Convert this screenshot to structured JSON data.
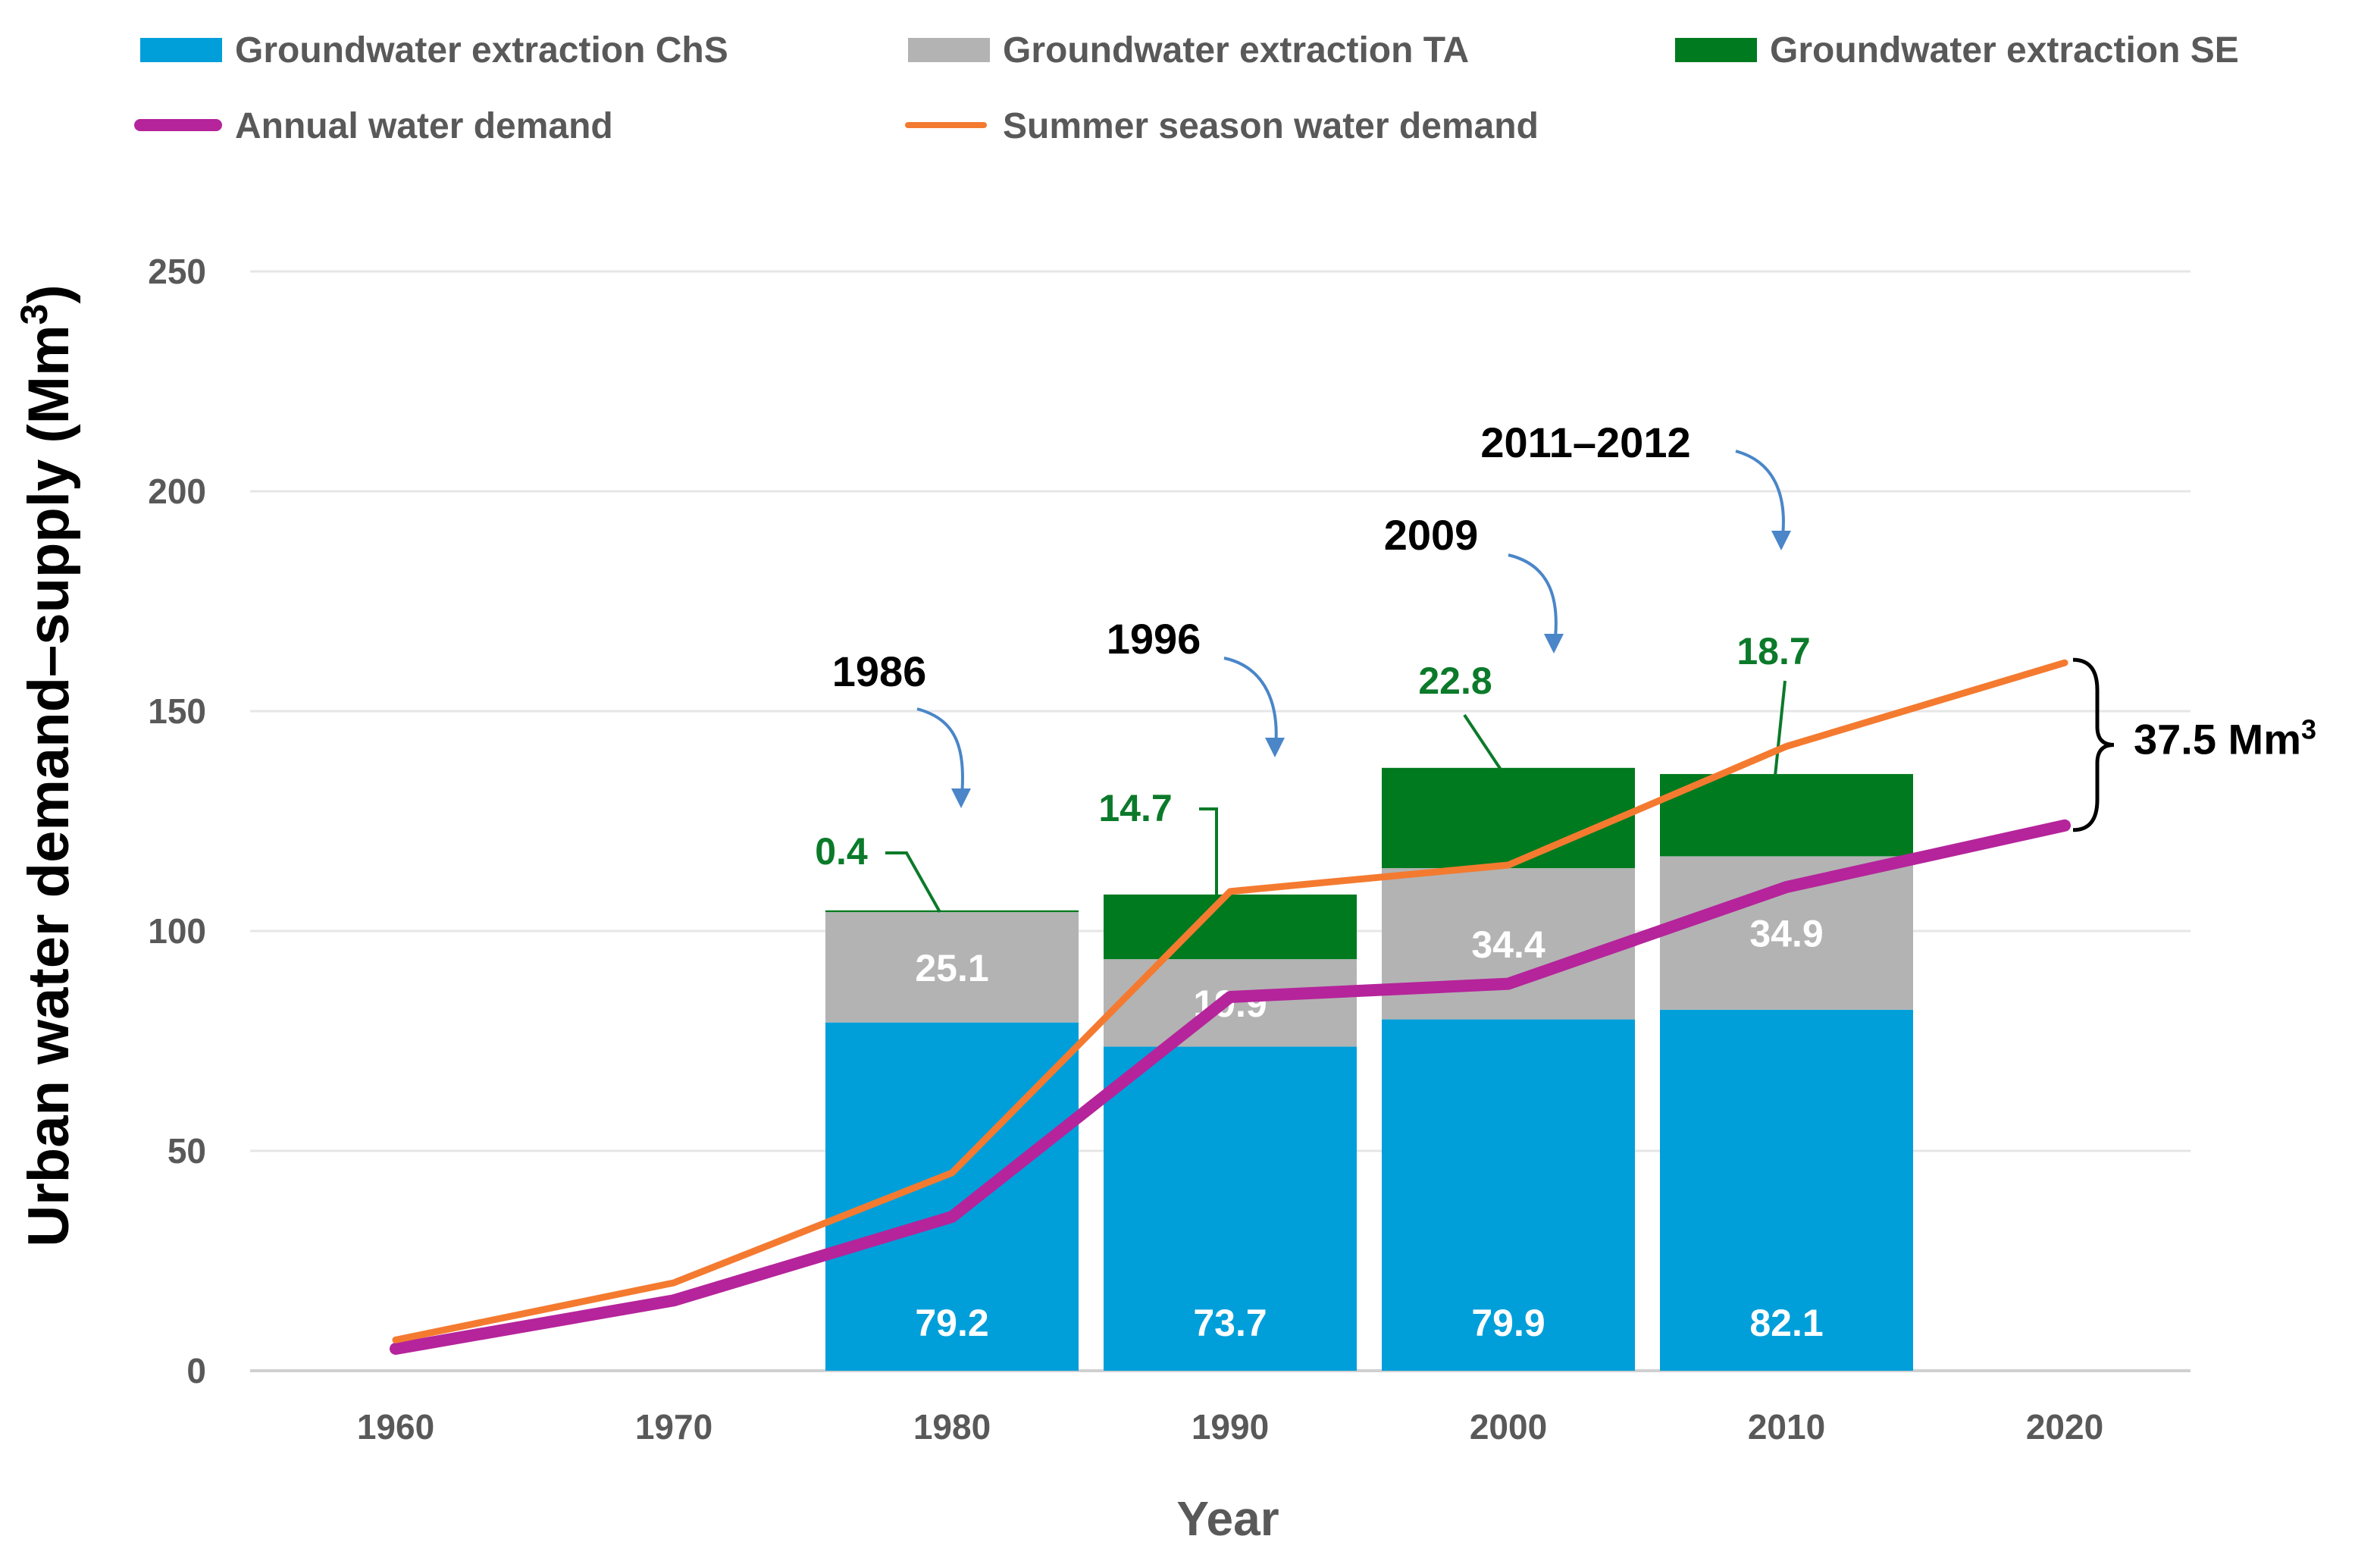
{
  "colors": {
    "chs": "#009FDA",
    "ta": "#B3B3B3",
    "se": "#007A1F",
    "annual": "#B5249B",
    "summer": "#F47A30",
    "arrow": "#4A86C8",
    "grid": "#E6E6E6",
    "tick_text": "#595959",
    "se_label": "#0B7A2A",
    "bar_label": "#FFFFFF"
  },
  "chart_data": {
    "type": "bar",
    "title": "",
    "xlabel": "Year",
    "ylabel": "Urban water demand–supply (Mm",
    "ylabel_sup": "3",
    "ylabel_close": ")",
    "ylim": [
      0,
      250
    ],
    "yticks": [
      0,
      50,
      100,
      150,
      200,
      250
    ],
    "xticks": [
      "1960",
      "1970",
      "1980",
      "1990",
      "2000",
      "2010",
      "2020"
    ],
    "grid": true,
    "legend_position": "top",
    "stacked_bars": {
      "categories": [
        "1980",
        "1990",
        "2000",
        "2010"
      ],
      "series": [
        {
          "name": "Groundwater extraction ChS",
          "key": "chs",
          "values": [
            79.2,
            73.7,
            79.9,
            82.1
          ],
          "labels": [
            "79.2",
            "73.7",
            "79.9",
            "82.1"
          ]
        },
        {
          "name": "Groundwater extraction TA",
          "key": "ta",
          "values": [
            25.1,
            19.9,
            34.4,
            34.9
          ],
          "labels": [
            "25.1",
            "19.9",
            "34.4",
            "34.9"
          ]
        },
        {
          "name": "Groundwater extraction SE",
          "key": "se",
          "values": [
            0.4,
            14.7,
            22.8,
            18.7
          ],
          "labels": [
            "0.4",
            "14.7",
            "22.8",
            "18.7"
          ]
        }
      ]
    },
    "lines": [
      {
        "name": "Annual water demand",
        "key": "annual",
        "x": [
          1960,
          1970,
          1980,
          1990,
          2000,
          2010,
          2020
        ],
        "y": [
          5,
          16,
          35,
          85,
          88,
          110,
          124
        ]
      },
      {
        "name": "Summer season water demand",
        "key": "summer",
        "x": [
          1960,
          1970,
          1980,
          1990,
          2000,
          2010,
          2020
        ],
        "y": [
          7,
          20,
          45,
          109,
          115,
          142,
          161
        ]
      }
    ],
    "events": [
      {
        "label": "1986",
        "x": 1986,
        "y": 128
      },
      {
        "label": "1996",
        "x": 1996,
        "y": 140
      },
      {
        "label": "2009",
        "x": 2009,
        "y": 168
      },
      {
        "label": "2011–2012",
        "x": 2011.5,
        "y": 190
      }
    ],
    "gap_annotation": {
      "label": "37.5 Mm",
      "sup": "3",
      "x": 2020,
      "y_low": 124,
      "y_high": 161
    }
  }
}
